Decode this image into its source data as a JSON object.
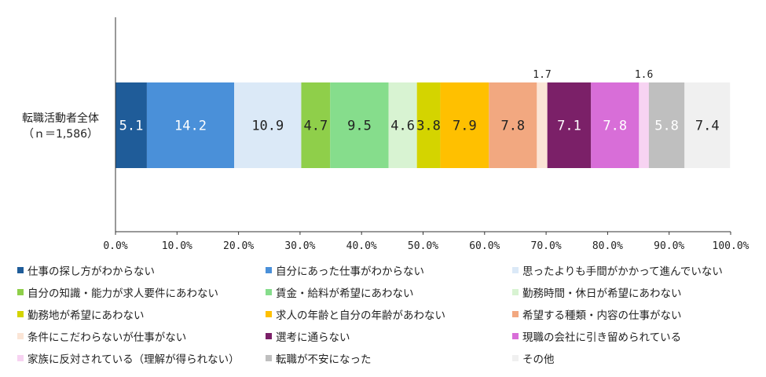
{
  "chart_data": {
    "type": "bar",
    "orientation": "horizontal",
    "stacked": true,
    "categories": [
      "転職活動者全体"
    ],
    "category_note": "（ｎ＝1,586）",
    "xlim": [
      0,
      100
    ],
    "x_ticks": [
      "0.0%",
      "10.0%",
      "20.0%",
      "30.0%",
      "40.0%",
      "50.0%",
      "60.0%",
      "70.0%",
      "80.0%",
      "90.0%",
      "100.0%"
    ],
    "grid": false,
    "legend_position": "bottom",
    "series": [
      {
        "name": "仕事の探し方がわからない",
        "values": [
          5.1
        ],
        "label": "5.1",
        "color": "#1f5c99"
      },
      {
        "name": "自分にあった仕事がわからない",
        "values": [
          14.2
        ],
        "label": "14.2",
        "color": "#4a90d9"
      },
      {
        "name": "思ったよりも手間がかかって進んでいない",
        "values": [
          10.9
        ],
        "label": "10.9",
        "color": "#dbe9f7"
      },
      {
        "name": "自分の知識・能力が求人要件にあわない",
        "values": [
          4.7
        ],
        "label": "4.7",
        "color": "#8fcf4a"
      },
      {
        "name": "賃金・給料が希望にあわない",
        "values": [
          9.5
        ],
        "label": "9.5",
        "color": "#86dd8c"
      },
      {
        "name": "勤務時間・休日が希望にあわない",
        "values": [
          4.6
        ],
        "label": "4.6",
        "color": "#d8f3d2"
      },
      {
        "name": "勤務地が希望にあわない",
        "values": [
          3.8
        ],
        "label": "3.8",
        "color": "#d4d400"
      },
      {
        "name": "求人の年齢と自分の年齢があわない",
        "values": [
          7.9
        ],
        "label": "7.9",
        "color": "#ffc000"
      },
      {
        "name": "希望する種類・内容の仕事がない",
        "values": [
          7.8
        ],
        "label": "7.8",
        "color": "#f2a880"
      },
      {
        "name": "条件にこだわらないが仕事がない",
        "values": [
          1.7
        ],
        "label": "1.7",
        "color": "#fbe5d6"
      },
      {
        "name": "選考に通らない",
        "values": [
          7.1
        ],
        "label": "7.1",
        "color": "#7b2068"
      },
      {
        "name": "現職の会社に引き留められている",
        "values": [
          7.8
        ],
        "label": "7.8",
        "color": "#d86ed8"
      },
      {
        "name": "家族に反対されている（理解が得られない）",
        "values": [
          1.6
        ],
        "label": "1.6",
        "color": "#f7d3f2"
      },
      {
        "name": "転職が不安になった",
        "values": [
          5.8
        ],
        "label": "5.8",
        "color": "#bfbfbf"
      },
      {
        "name": "その他",
        "values": [
          7.4
        ],
        "label": "7.4",
        "color": "#f0f0f0"
      }
    ]
  }
}
